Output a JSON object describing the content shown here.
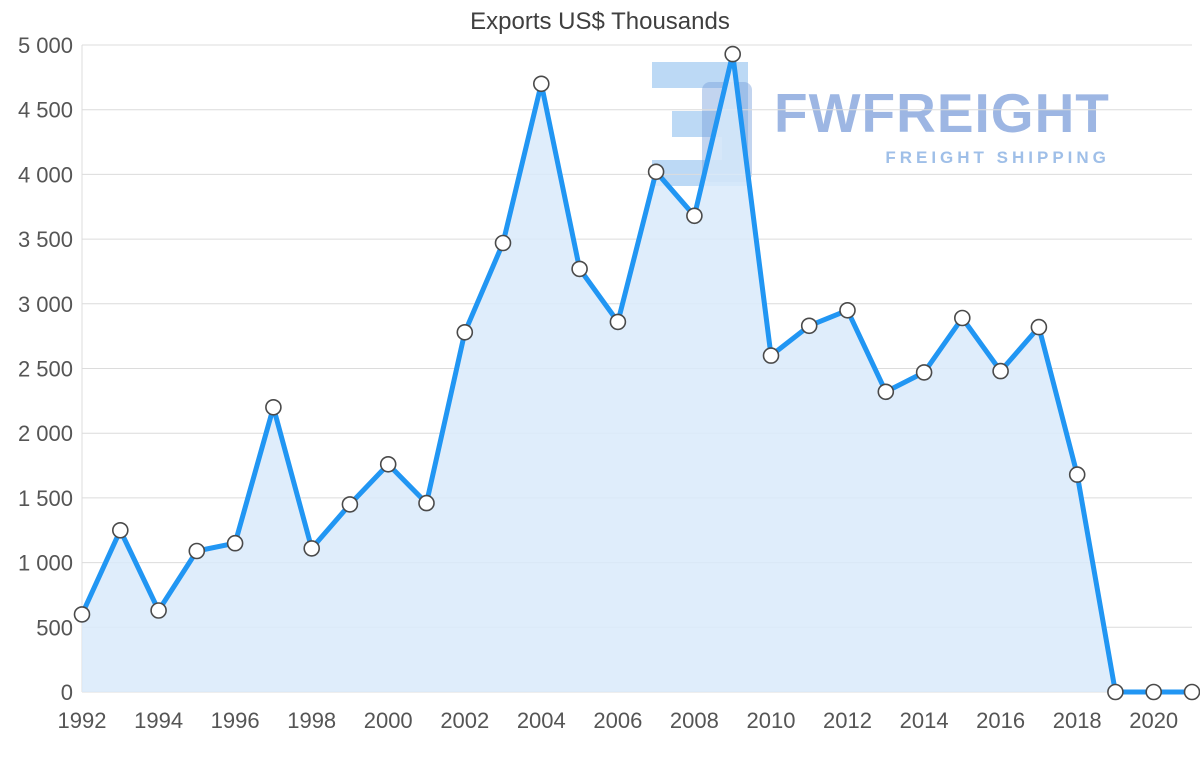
{
  "chart_data": {
    "type": "area",
    "title": "Exports US$ Thousands",
    "series_name": "Exports US$ Thousands",
    "x": [
      1992,
      1993,
      1994,
      1995,
      1996,
      1997,
      1998,
      1999,
      2000,
      2001,
      2002,
      2003,
      2004,
      2005,
      2006,
      2007,
      2008,
      2009,
      2010,
      2011,
      2012,
      2013,
      2014,
      2015,
      2016,
      2017,
      2018,
      2019,
      2020,
      2021
    ],
    "values": [
      600,
      1250,
      630,
      1090,
      1150,
      2200,
      1110,
      1450,
      1760,
      1460,
      2780,
      3470,
      4700,
      3270,
      2860,
      4020,
      3680,
      4930,
      2600,
      2830,
      2950,
      2320,
      2470,
      2890,
      2480,
      2820,
      1680,
      0,
      0,
      0
    ],
    "ylim": [
      0,
      5000
    ],
    "yticks": [
      0,
      500,
      1000,
      1500,
      2000,
      2500,
      3000,
      3500,
      4000,
      4500,
      5000
    ],
    "ytick_labels": [
      "0",
      "500",
      "1 000",
      "1 500",
      "2 000",
      "2 500",
      "3 000",
      "3 500",
      "4 000",
      "4 500",
      "5 000"
    ],
    "xticks": [
      1992,
      1994,
      1996,
      1998,
      2000,
      2002,
      2004,
      2006,
      2008,
      2010,
      2012,
      2014,
      2016,
      2018,
      2020
    ],
    "xtick_labels": [
      "1992",
      "1994",
      "1996",
      "1998",
      "2000",
      "2002",
      "2004",
      "2006",
      "2008",
      "2010",
      "2012",
      "2014",
      "2016",
      "2018",
      "2020"
    ],
    "grid": "horizontal",
    "legend": "none"
  },
  "colors": {
    "line": "#2196f3",
    "fill": "#d9eafa",
    "marker_fill": "#ffffff",
    "marker_stroke": "#4a4a4a",
    "grid": "#dcdcdc",
    "axis_text": "#555555",
    "title_text": "#3f3f3f",
    "watermark_brand": "rgba(104,143,212,0.65)",
    "watermark_subtitle": "rgba(154,188,231,0.95)",
    "watermark_glyph": "#bcd9f5",
    "watermark_glyph_overlay": "rgba(120,160,220,0.45)"
  },
  "watermark": {
    "brand": "FWFREIGHT",
    "subtitle": "FREIGHT SHIPPING"
  }
}
